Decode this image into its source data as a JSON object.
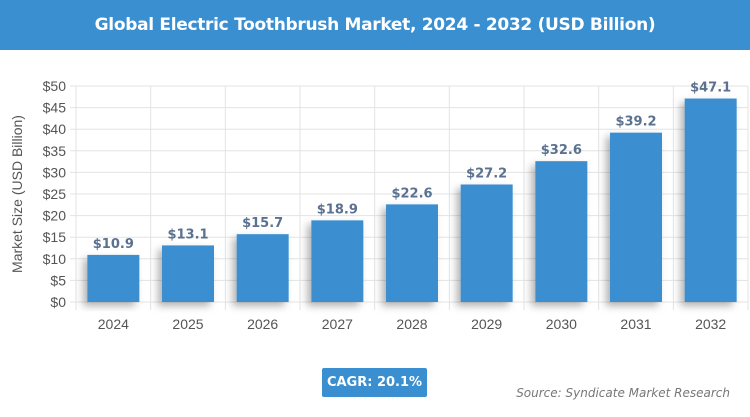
{
  "chart_data": {
    "type": "bar",
    "title": "Global Electric Toothbrush Market, 2024 - 2032 (USD Billion)",
    "xlabel": "",
    "ylabel": "Market Size (USD Billion)",
    "categories": [
      "2024",
      "2025",
      "2026",
      "2027",
      "2028",
      "2029",
      "2030",
      "2031",
      "2032"
    ],
    "values": [
      10.9,
      13.1,
      15.7,
      18.9,
      22.6,
      27.2,
      32.6,
      39.2,
      47.1
    ],
    "data_labels": [
      "$10.9",
      "$13.1",
      "$15.7",
      "$18.9",
      "$22.6",
      "$27.2",
      "$32.6",
      "$39.2",
      "$47.1"
    ],
    "yticks": [
      0,
      5,
      10,
      15,
      20,
      25,
      30,
      35,
      40,
      45,
      50
    ],
    "ytick_labels": [
      "$0",
      "$5",
      "$10",
      "$15",
      "$20",
      "$25",
      "$30",
      "$35",
      "$40",
      "$45",
      "$50"
    ],
    "ylim": [
      0,
      50
    ],
    "grid": true,
    "colors": {
      "bar": "#3a8fd0",
      "label": "#5a7190",
      "header": "#3a8fd0"
    }
  },
  "cagr": "CAGR: 20.1%",
  "source": "Source: Syndicate Market Research"
}
